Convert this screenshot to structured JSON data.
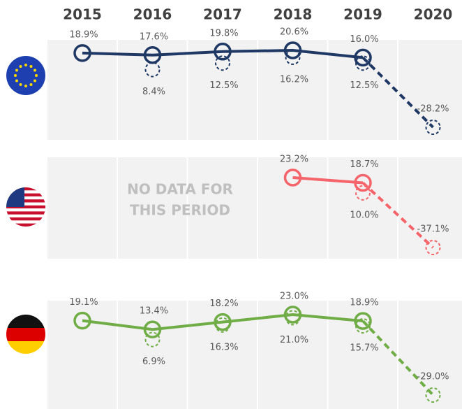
{
  "chart_data": {
    "type": "line",
    "categories": [
      "2015",
      "2016",
      "2017",
      "2018",
      "2019",
      "2020"
    ],
    "panels": [
      {
        "series": [
          {
            "color": "#1f3864",
            "style": "solid",
            "values": [
              18.9,
              17.6,
              19.8,
              20.6,
              16.0,
              null
            ],
            "value_labels": [
              "18.9%",
              "17.6%",
              "19.8%",
              "20.6%",
              "16.0%",
              null
            ]
          },
          {
            "color": "#1f3864",
            "style": "dashed",
            "values": [
              null,
              8.4,
              12.5,
              16.2,
              12.5,
              -28.2
            ],
            "value_labels": [
              null,
              "8.4%",
              "12.5%",
              "16.2%",
              "12.5%",
              "-28.2%"
            ]
          }
        ]
      },
      {
        "annotation": [
          "NO DATA FOR",
          "THIS PERIOD"
        ],
        "series": [
          {
            "color": "#f4646a",
            "style": "solid",
            "values": [
              null,
              null,
              null,
              23.2,
              18.7,
              null
            ],
            "value_labels": [
              null,
              null,
              null,
              "23.2%",
              "18.7%",
              null
            ]
          },
          {
            "color": "#f4646a",
            "style": "dashed",
            "values": [
              null,
              null,
              null,
              null,
              10.0,
              -37.1
            ],
            "value_labels": [
              null,
              null,
              null,
              null,
              "10.0%",
              "-37.1%"
            ]
          }
        ]
      },
      {
        "series": [
          {
            "color": "#70ad47",
            "style": "solid",
            "values": [
              19.1,
              13.4,
              18.2,
              23.0,
              18.9,
              null
            ],
            "value_labels": [
              "19.1%",
              "13.4%",
              "18.2%",
              "23.0%",
              "18.9%",
              null
            ]
          },
          {
            "color": "#70ad47",
            "style": "dashed",
            "values": [
              null,
              6.9,
              16.3,
              21.0,
              15.7,
              -29.0
            ],
            "value_labels": [
              null,
              "6.9%",
              "16.3%",
              "21.0%",
              "15.7%",
              "-29.0%"
            ]
          }
        ]
      }
    ]
  }
}
